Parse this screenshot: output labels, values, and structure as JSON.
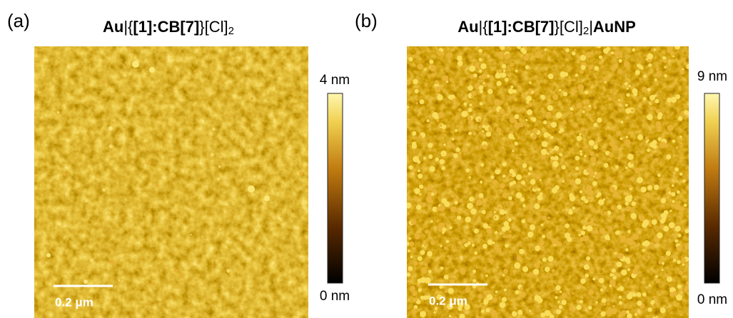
{
  "panels": [
    {
      "label": "(a)",
      "title": [
        "Au",
        "|{",
        "[1]:CB[7]",
        "}[Cl]",
        "2"
      ],
      "colorbar_max": "4 nm",
      "colorbar_min": "0 nm",
      "scale_bar": "0.2 μm"
    },
    {
      "label": "(b)",
      "title": [
        "Au",
        "|{",
        "[1]:CB[7]",
        "}[Cl]",
        "2",
        "|",
        "AuNP"
      ],
      "colorbar_max": "9 nm",
      "colorbar_min": "0 nm",
      "scale_bar": "0.2 μm"
    }
  ]
}
